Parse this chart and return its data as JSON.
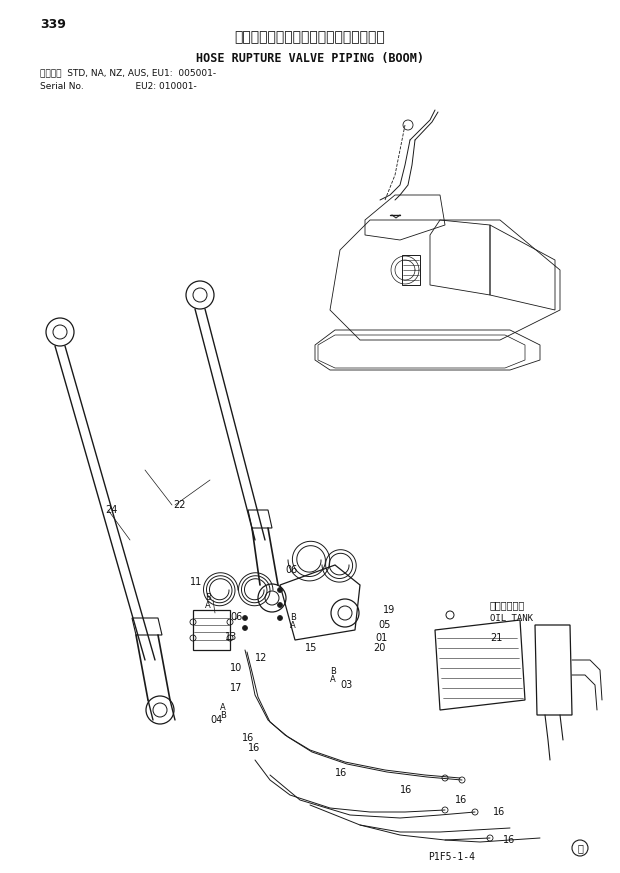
{
  "page_number": "339",
  "title_japanese": "ホースラプチャーバルブ配管（ブーム）",
  "title_english": "HOSE RUPTURE VALVE PIPING (BOOM)",
  "serial_line1": "適用号機  STD, NA, NZ, AUS, EU1:  005001-",
  "serial_line2": "Serial No.                  EU2: 010001-",
  "footer_code": "P1F5-1-4",
  "bg_color": "#ffffff",
  "line_color": "#1a1a1a",
  "text_color": "#111111",
  "label_oil_tank_jp": "オイルタンク",
  "label_oil_tank_en": "OIL TANK"
}
